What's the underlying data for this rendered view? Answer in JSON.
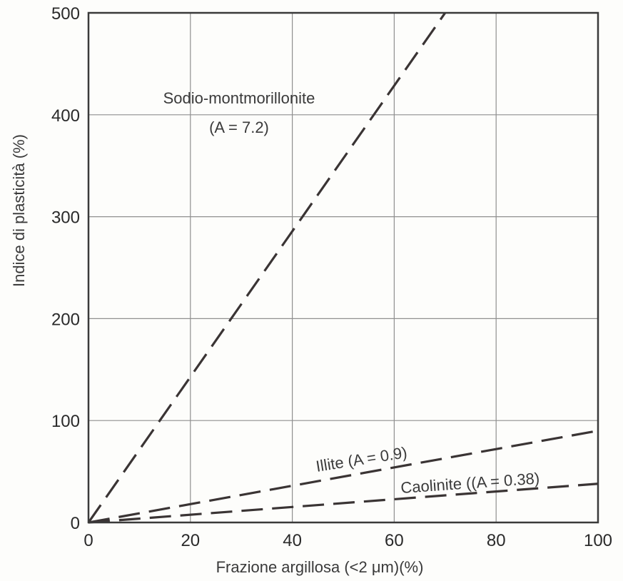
{
  "chart_data": {
    "type": "line",
    "xlabel": "Frazione argillosa  (<2 μm)(%)",
    "ylabel": "Indice di plasticità (%)",
    "xlim": [
      0,
      100
    ],
    "ylim": [
      0,
      500
    ],
    "x_ticks": [
      0,
      20,
      40,
      60,
      80,
      100
    ],
    "y_ticks": [
      0,
      100,
      200,
      300,
      400,
      500
    ],
    "grid": true,
    "line_style": "dashed",
    "series": [
      {
        "label_line1": "Sodio-montmorillonite",
        "label_line2": "(A = 7.2)",
        "activity": 7.2,
        "x": [
          0,
          70
        ],
        "y": [
          0,
          500
        ]
      },
      {
        "label_line1": "Illite (A = 0.9)",
        "activity": 0.9,
        "x": [
          0,
          100
        ],
        "y": [
          0,
          90
        ]
      },
      {
        "label_line1": "Caolinite ((A = 0.38)",
        "activity": 0.38,
        "x": [
          0,
          100
        ],
        "y": [
          0,
          38
        ]
      }
    ]
  }
}
